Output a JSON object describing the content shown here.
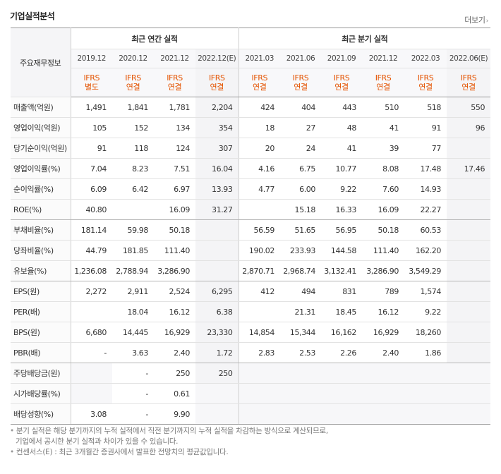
{
  "title": "기업실적분석",
  "more_label": "더보기",
  "label_header": "주요재무정보",
  "group_annual": "최근 연간 실적",
  "group_quarter": "최근 분기 실적",
  "periods": [
    "2019.12",
    "2020.12",
    "2021.12",
    "2022.12(E)",
    "2021.03",
    "2021.06",
    "2021.09",
    "2021.12",
    "2022.03",
    "2022.06(E)"
  ],
  "ifrs": [
    [
      "IFRS",
      "별도"
    ],
    [
      "IFRS",
      "연결"
    ],
    [
      "IFRS",
      "연결"
    ],
    [
      "IFRS",
      "연결"
    ],
    [
      "IFRS",
      "연결"
    ],
    [
      "IFRS",
      "연결"
    ],
    [
      "IFRS",
      "연결"
    ],
    [
      "IFRS",
      "연결"
    ],
    [
      "IFRS",
      "연결"
    ],
    [
      "IFRS",
      "연결"
    ]
  ],
  "rows": [
    {
      "label": "매출액(억원)",
      "values": [
        "1,491",
        "1,841",
        "1,781",
        "2,204",
        "424",
        "404",
        "443",
        "510",
        "518",
        "550"
      ]
    },
    {
      "label": "영업이익(억원)",
      "values": [
        "105",
        "152",
        "134",
        "354",
        "18",
        "27",
        "48",
        "41",
        "91",
        "96"
      ]
    },
    {
      "label": "당기순이익(억원)",
      "values": [
        "91",
        "118",
        "124",
        "307",
        "20",
        "24",
        "41",
        "39",
        "77",
        ""
      ]
    },
    {
      "label": "영업이익률(%)",
      "values": [
        "7.04",
        "8.23",
        "7.51",
        "16.04",
        "4.16",
        "6.75",
        "10.77",
        "8.08",
        "17.48",
        "17.46"
      ]
    },
    {
      "label": "순이익률(%)",
      "values": [
        "6.09",
        "6.42",
        "6.97",
        "13.93",
        "4.77",
        "6.00",
        "9.22",
        "7.60",
        "14.93",
        ""
      ]
    },
    {
      "label": "ROE(%)",
      "values": [
        "40.80",
        "",
        "16.09",
        "31.27",
        "",
        "15.18",
        "16.33",
        "16.09",
        "22.27",
        ""
      ]
    },
    {
      "label": "부채비율(%)",
      "values": [
        "181.14",
        "59.98",
        "50.18",
        "",
        "56.59",
        "51.65",
        "56.95",
        "50.18",
        "60.53",
        ""
      ]
    },
    {
      "label": "당좌비율(%)",
      "values": [
        "44.79",
        "181.85",
        "111.40",
        "",
        "190.02",
        "233.93",
        "144.58",
        "111.40",
        "162.20",
        ""
      ]
    },
    {
      "label": "유보율(%)",
      "values": [
        "1,236.08",
        "2,788.94",
        "3,286.90",
        "",
        "2,870.71",
        "2,968.74",
        "3,132.41",
        "3,286.90",
        "3,549.29",
        ""
      ]
    },
    {
      "label": "EPS(원)",
      "values": [
        "2,272",
        "2,911",
        "2,524",
        "6,295",
        "412",
        "494",
        "831",
        "789",
        "1,574",
        ""
      ]
    },
    {
      "label": "PER(배)",
      "values": [
        "",
        "18.04",
        "16.12",
        "6.38",
        "",
        "21.31",
        "18.45",
        "16.12",
        "9.22",
        ""
      ]
    },
    {
      "label": "BPS(원)",
      "values": [
        "6,680",
        "14,445",
        "16,929",
        "23,330",
        "14,854",
        "15,344",
        "16,162",
        "16,929",
        "18,260",
        ""
      ]
    },
    {
      "label": "PBR(배)",
      "values": [
        "-",
        "3.63",
        "2.40",
        "1.72",
        "2.83",
        "2.53",
        "2.26",
        "2.40",
        "1.86",
        ""
      ]
    },
    {
      "label": "주당배당금(원)",
      "values": [
        "",
        "-",
        "250",
        "250",
        "",
        "",
        "",
        "",
        "",
        ""
      ]
    },
    {
      "label": "시가배당률(%)",
      "values": [
        "",
        "-",
        "0.61",
        "",
        "",
        "",
        "",
        "",
        "",
        ""
      ]
    },
    {
      "label": "배당성향(%)",
      "values": [
        "3.08",
        "-",
        "9.90",
        "",
        "",
        "",
        "",
        "",
        "",
        ""
      ]
    }
  ],
  "footnote1": "분기 실적은 해당 분기까지의 누적 실적에서 직전 분기까지의 누적 실적을 차감하는 방식으로 계산되므로,",
  "footnote1b": "기업에서 공시한 분기 실적과 차이가 있을 수 있습니다.",
  "footnote2": "컨센서스(E) : 최근 3개월간 증권사에서 발표한 전망치의 평균값입니다."
}
